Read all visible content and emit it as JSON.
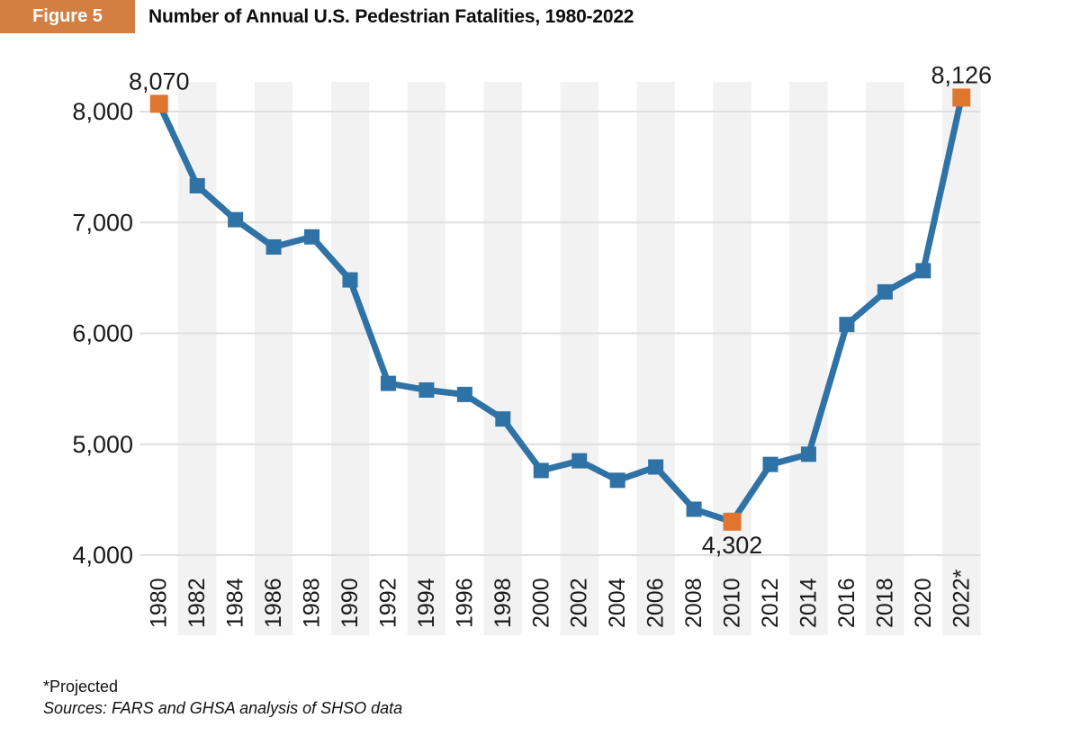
{
  "header": {
    "figure_label": "Figure 5",
    "title": "Number of Annual U.S. Pedestrian Fatalities, 1980-2022"
  },
  "footer": {
    "footnote": "*Projected",
    "source": "Sources: FARS and GHSA analysis of SHSO data"
  },
  "colors": {
    "badge_bg": "#d47f42",
    "badge_text": "#ffffff",
    "line_blue": "#2f72a6",
    "marker_orange": "#e0752e",
    "stripe_gray": "#f2f2f2",
    "grid_gray": "#dedede",
    "text": "#1a1a1a"
  },
  "chart_data": {
    "type": "line",
    "title": "Number of Annual U.S. Pedestrian Fatalities, 1980-2022",
    "xlabel": "",
    "ylabel": "",
    "x": [
      1980,
      1982,
      1984,
      1986,
      1988,
      1990,
      1992,
      1994,
      1996,
      1998,
      2000,
      2002,
      2004,
      2006,
      2008,
      2010,
      2012,
      2014,
      2016,
      2018,
      2020,
      2022
    ],
    "xtick_labels": [
      "1980",
      "1982",
      "1984",
      "1986",
      "1988",
      "1990",
      "1992",
      "1994",
      "1996",
      "1998",
      "2000",
      "2002",
      "2004",
      "2006",
      "2008",
      "2010",
      "2012",
      "2014",
      "2016",
      "2018",
      "2020",
      "2022*"
    ],
    "series": [
      {
        "name": "Annual U.S. pedestrian fatalities",
        "values": [
          8070,
          7331,
          7025,
          6779,
          6870,
          6482,
          5549,
          5489,
          5449,
          5228,
          4763,
          4851,
          4675,
          4795,
          4414,
          4302,
          4818,
          4910,
          6080,
          6374,
          6565,
          8126
        ]
      }
    ],
    "yticks": [
      4000,
      5000,
      6000,
      7000,
      8000
    ],
    "ytick_labels": [
      "4,000",
      "5,000",
      "6,000",
      "7,000",
      "8,000"
    ],
    "ylim": [
      4000,
      8270
    ],
    "grid": "horizontal gridlines on",
    "background_stripes": "alternating vertical light-gray bands on odd ticks",
    "marker": "square",
    "legend": "none",
    "highlight_years": [
      1980,
      2010,
      2022
    ],
    "annotations": [
      {
        "year": 1980,
        "value": 8070,
        "text": "8,070",
        "position": "above"
      },
      {
        "year": 2010,
        "value": 4302,
        "text": "4,302",
        "position": "below"
      },
      {
        "year": 2022,
        "value": 8126,
        "text": "8,126",
        "position": "above"
      }
    ]
  }
}
